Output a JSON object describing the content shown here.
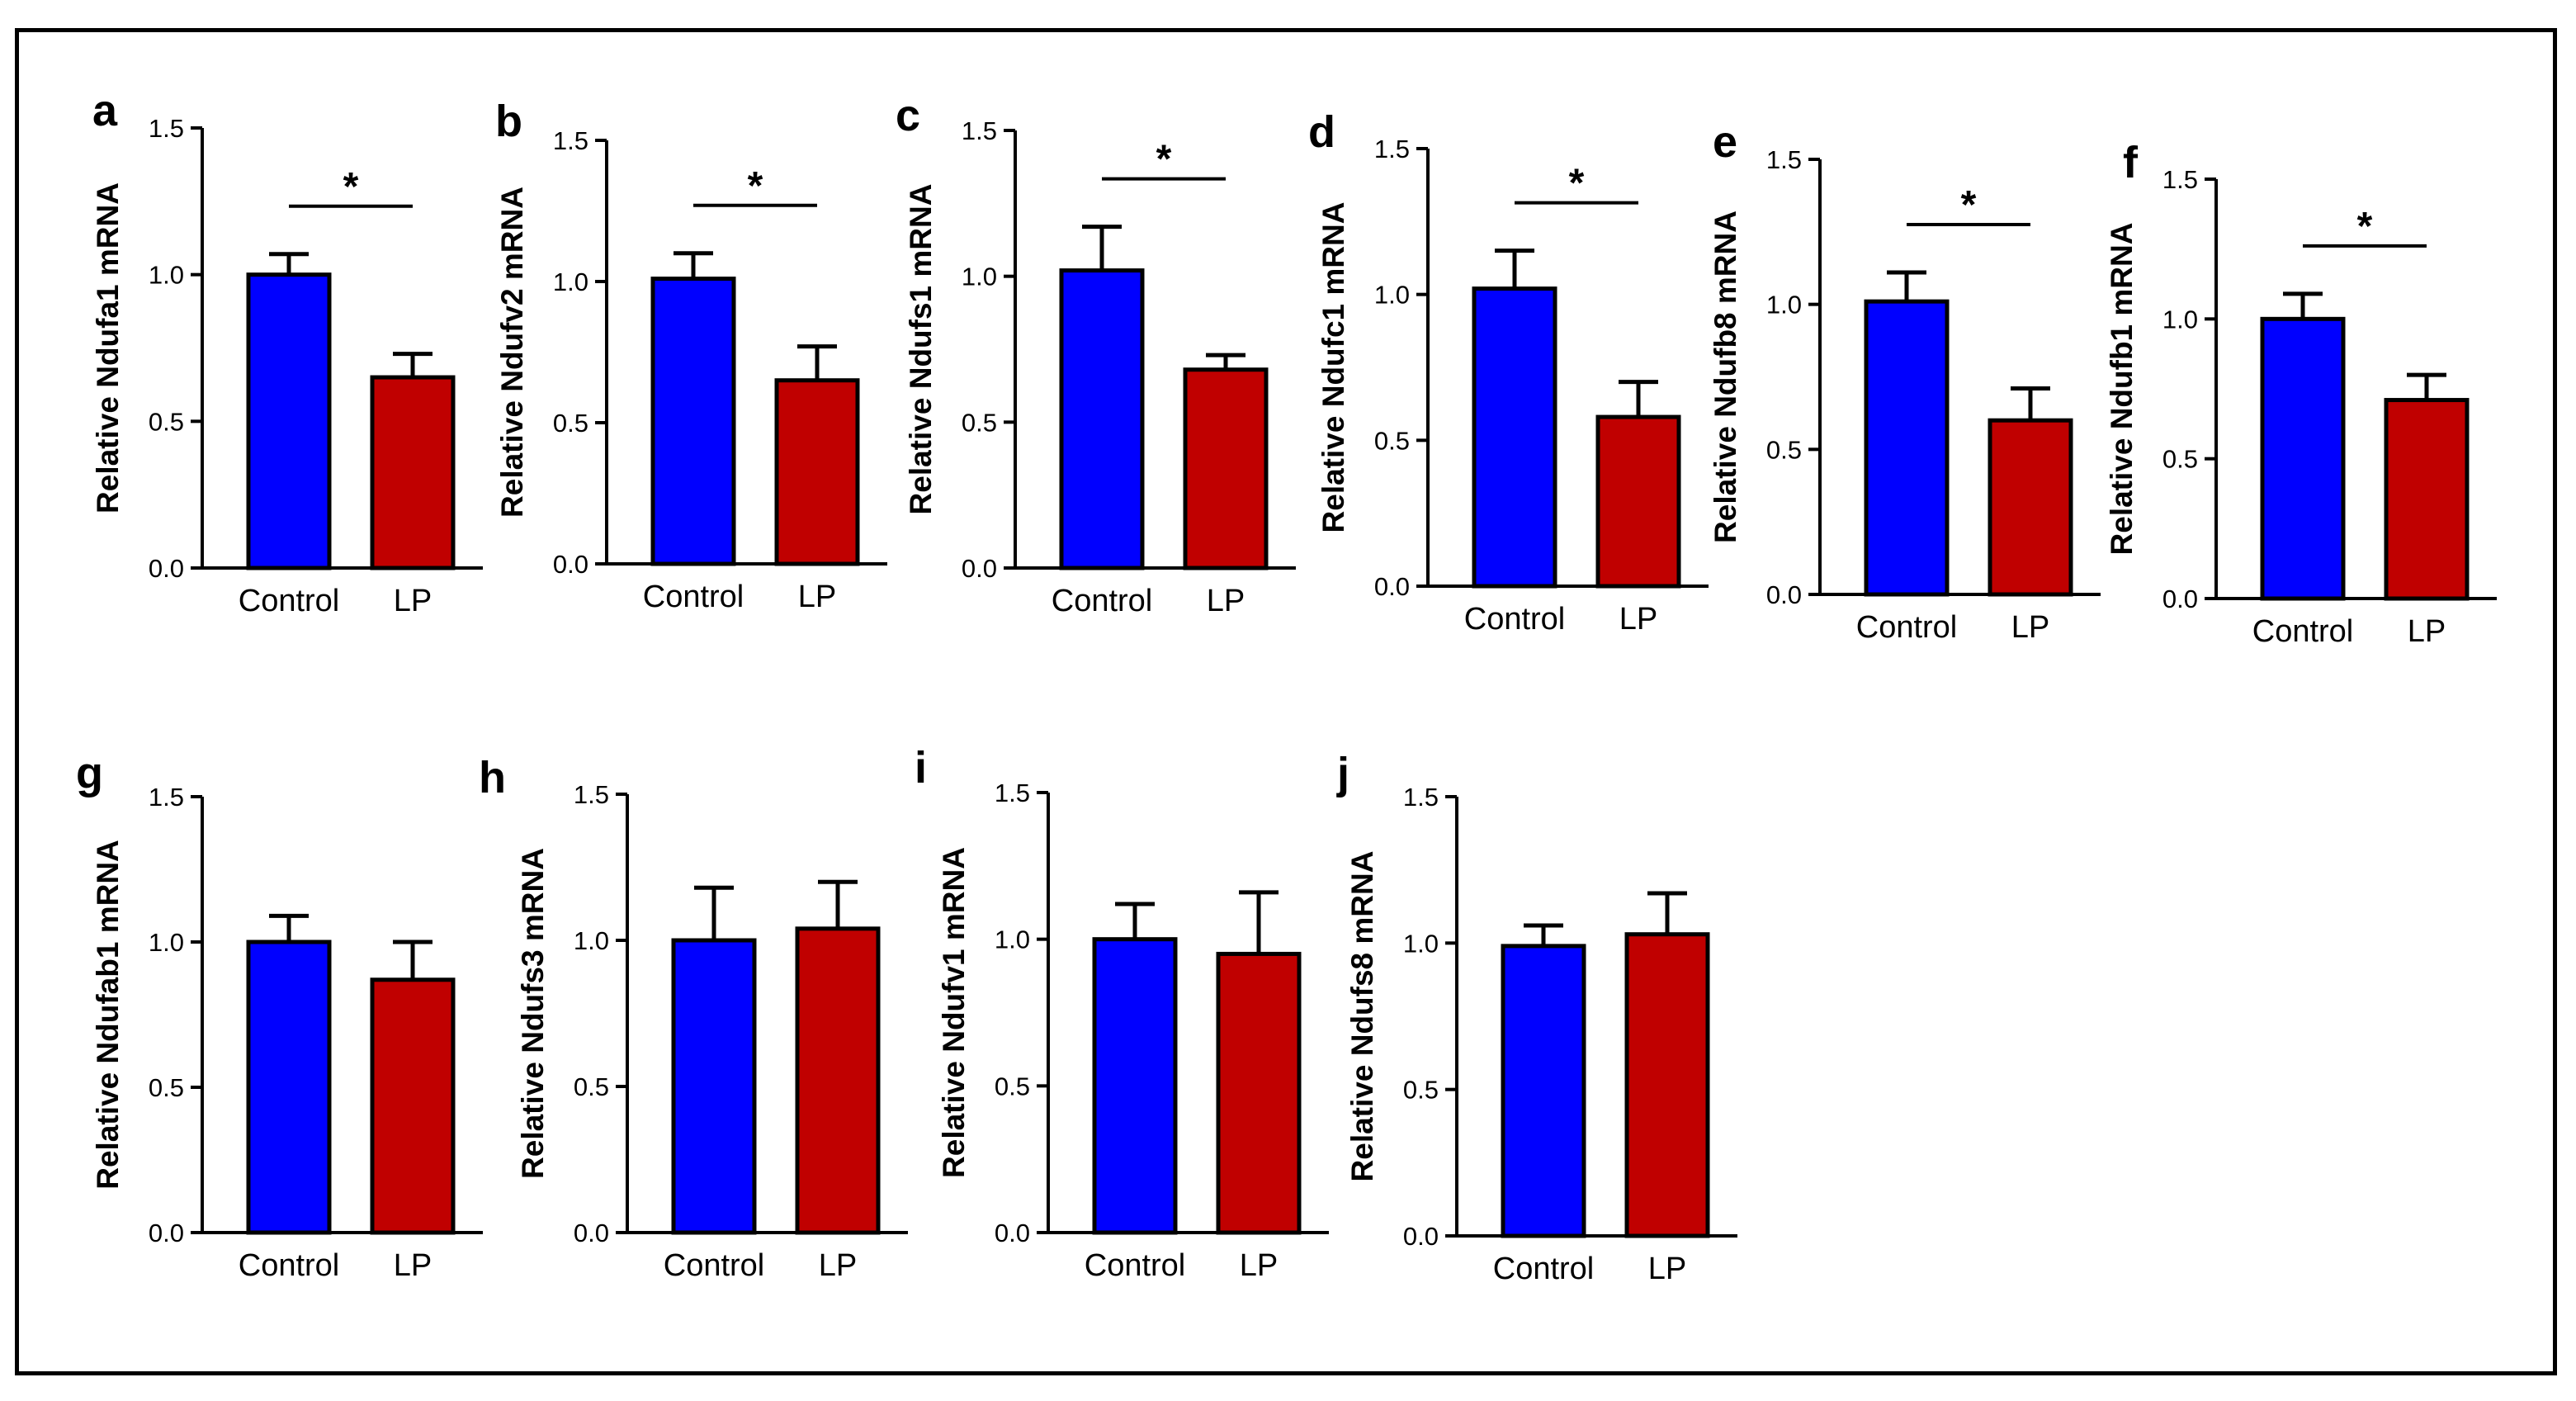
{
  "colors": {
    "control": "#0000ff",
    "lp": "#c00000",
    "axis": "#000000"
  },
  "chart_data": [
    {
      "panel": "a",
      "type": "bar",
      "ylabel": "Relative Ndufa1 mRNA",
      "categories": [
        "Control",
        "LP"
      ],
      "values": [
        1.0,
        0.65
      ],
      "errors": [
        0.07,
        0.08
      ],
      "ylim": [
        0,
        1.5
      ],
      "yticks": [
        "0.0",
        "0.5",
        "1.0",
        "1.5"
      ],
      "significance": "*"
    },
    {
      "panel": "b",
      "type": "bar",
      "ylabel": "Relative Ndufv2 mRNA",
      "categories": [
        "Control",
        "LP"
      ],
      "values": [
        1.01,
        0.65
      ],
      "errors": [
        0.09,
        0.12
      ],
      "ylim": [
        0,
        1.5
      ],
      "yticks": [
        "0.0",
        "0.5",
        "1.0",
        "1.5"
      ],
      "significance": "*"
    },
    {
      "panel": "c",
      "type": "bar",
      "ylabel": "Relative Ndufs1 mRNA",
      "categories": [
        "Control",
        "LP"
      ],
      "values": [
        1.02,
        0.68
      ],
      "errors": [
        0.15,
        0.05
      ],
      "ylim": [
        0,
        1.5
      ],
      "yticks": [
        "0.0",
        "0.5",
        "1.0",
        "1.5"
      ],
      "significance": "*"
    },
    {
      "panel": "d",
      "type": "bar",
      "ylabel": "Relative Ndufc1 mRNA",
      "categories": [
        "Control",
        "LP"
      ],
      "values": [
        1.02,
        0.58
      ],
      "errors": [
        0.13,
        0.12
      ],
      "ylim": [
        0,
        1.5
      ],
      "yticks": [
        "0.0",
        "0.5",
        "1.0",
        "1.5"
      ],
      "significance": "*"
    },
    {
      "panel": "e",
      "type": "bar",
      "ylabel": "Relative Ndufb8 mRNA",
      "categories": [
        "Control",
        "LP"
      ],
      "values": [
        1.01,
        0.6
      ],
      "errors": [
        0.1,
        0.11
      ],
      "ylim": [
        0,
        1.5
      ],
      "yticks": [
        "0.0",
        "0.5",
        "1.0",
        "1.5"
      ],
      "significance": "*"
    },
    {
      "panel": "f",
      "type": "bar",
      "ylabel": "Relative Ndufb1 mRNA",
      "categories": [
        "Control",
        "LP"
      ],
      "values": [
        1.0,
        0.71
      ],
      "errors": [
        0.09,
        0.09
      ],
      "ylim": [
        0,
        1.5
      ],
      "yticks": [
        "0.0",
        "0.5",
        "1.0",
        "1.5"
      ],
      "significance": "*"
    },
    {
      "panel": "g",
      "type": "bar",
      "ylabel": "Relative Ndufab1 mRNA",
      "categories": [
        "Control",
        "LP"
      ],
      "values": [
        1.0,
        0.87
      ],
      "errors": [
        0.09,
        0.13
      ],
      "ylim": [
        0,
        1.5
      ],
      "yticks": [
        "0.0",
        "0.5",
        "1.0",
        "1.5"
      ],
      "significance": ""
    },
    {
      "panel": "h",
      "type": "bar",
      "ylabel": "Relative Ndufs3 mRNA",
      "categories": [
        "Control",
        "LP"
      ],
      "values": [
        1.0,
        1.04
      ],
      "errors": [
        0.18,
        0.16
      ],
      "ylim": [
        0,
        1.5
      ],
      "yticks": [
        "0.0",
        "0.5",
        "1.0",
        "1.5"
      ],
      "significance": ""
    },
    {
      "panel": "i",
      "type": "bar",
      "ylabel": "Relative Ndufv1 mRNA",
      "categories": [
        "Control",
        "LP"
      ],
      "values": [
        1.0,
        0.95
      ],
      "errors": [
        0.12,
        0.21
      ],
      "ylim": [
        0,
        1.5
      ],
      "yticks": [
        "0.0",
        "0.5",
        "1.0",
        "1.5"
      ],
      "significance": ""
    },
    {
      "panel": "j",
      "type": "bar",
      "ylabel": "Relative Ndufs8 mRNA",
      "categories": [
        "Control",
        "LP"
      ],
      "values": [
        0.99,
        1.03
      ],
      "errors": [
        0.07,
        0.14
      ],
      "ylim": [
        0,
        1.5
      ],
      "yticks": [
        "0.0",
        "0.5",
        "1.0",
        "1.5"
      ],
      "significance": ""
    }
  ]
}
